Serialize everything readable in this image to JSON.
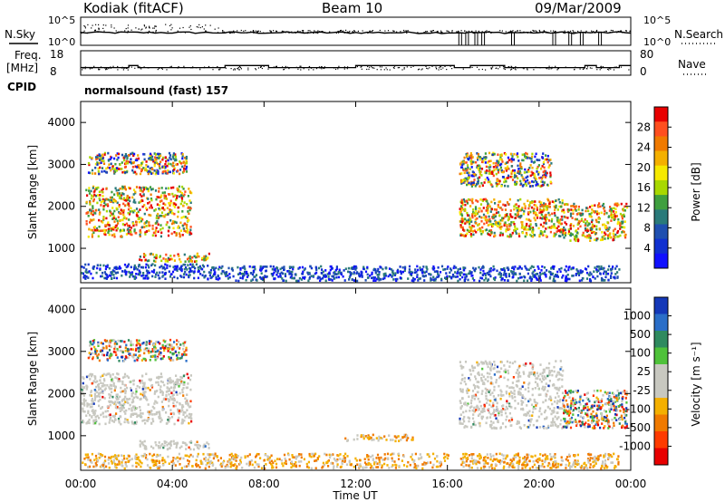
{
  "header": {
    "station": "Kodiak (fitACF)",
    "beam": "Beam 10",
    "date": "09/Mar/2009"
  },
  "side_labels": {
    "nsky": "N.Sky",
    "nsearch": "N.Search",
    "freq_line1": "Freq.",
    "freq_line2": "[MHz]",
    "nave": "Nave",
    "cpid": "CPID"
  },
  "cpid_text": "normalsound (fast) 157",
  "chart_data": [
    {
      "type": "line",
      "panel": "noise",
      "left_axis_ticks": [
        "10^5",
        "10^0"
      ],
      "right_axis_ticks": [
        "10^5",
        "10^0"
      ],
      "series": [
        {
          "name": "N.Sky",
          "style": "dots"
        },
        {
          "name": "N.Search",
          "style": "solid"
        }
      ],
      "search_noise_dropouts_hours": [
        16.5,
        16.8,
        17.2,
        17.5,
        18.8,
        20.6,
        21.3,
        21.8,
        22.6
      ]
    },
    {
      "type": "line",
      "panel": "frequency",
      "left_axis_ticks": [
        "18",
        "8"
      ],
      "right_axis_ticks": [
        "80",
        "0"
      ],
      "freq_steps_hours_mhz": [
        [
          0,
          10.8
        ],
        [
          2.1,
          11.8
        ],
        [
          2.5,
          10.8
        ],
        [
          6.3,
          11.8
        ],
        [
          8.2,
          10.8
        ],
        [
          12.0,
          11.8
        ],
        [
          16.3,
          10.8
        ],
        [
          17.0,
          11.8
        ],
        [
          18.5,
          10.8
        ],
        [
          22.0,
          11.8
        ],
        [
          22.5,
          10.8
        ],
        [
          23.5,
          11.8
        ],
        [
          24,
          11.8
        ]
      ]
    },
    {
      "type": "heatmap",
      "panel": "power",
      "xlabel": "",
      "ylabel": "Slant Range [km]",
      "yticks": [
        1000,
        2000,
        3000,
        4000
      ],
      "ylim": [
        180,
        4500
      ],
      "xlim_hours": [
        0,
        24
      ],
      "colorbar": {
        "label": "Power [dB]",
        "ticks": [
          "28",
          "24",
          "20",
          "16",
          "12",
          "8",
          "4"
        ],
        "colors": [
          "#e80000",
          "#ff4f1f",
          "#f07a00",
          "#f4b000",
          "#f6e900",
          "#a8d800",
          "#3f9f3f",
          "#2a7a7a",
          "#1f4fb0",
          "#1030d0",
          "#1010ff"
        ]
      },
      "echo_regions": [
        {
          "t0": 0.3,
          "t1": 4.6,
          "r0": 2800,
          "r1": 3300,
          "level": "mixed"
        },
        {
          "t0": 0.2,
          "t1": 4.8,
          "r0": 1300,
          "r1": 2500,
          "level": "high"
        },
        {
          "t0": 2.5,
          "t1": 5.6,
          "r0": 700,
          "r1": 900,
          "level": "high"
        },
        {
          "t0": 0.0,
          "t1": 5.5,
          "r0": 300,
          "r1": 650,
          "level": "low"
        },
        {
          "t0": 5.5,
          "t1": 16.5,
          "r0": 250,
          "r1": 600,
          "level": "low"
        },
        {
          "t0": 16.5,
          "t1": 21.0,
          "r0": 1300,
          "r1": 2200,
          "level": "high"
        },
        {
          "t0": 16.5,
          "t1": 20.5,
          "r0": 2500,
          "r1": 3300,
          "level": "mixed"
        },
        {
          "t0": 21.0,
          "t1": 23.8,
          "r0": 1200,
          "r1": 2100,
          "level": "high"
        },
        {
          "t0": 16.5,
          "t1": 23.5,
          "r0": 250,
          "r1": 600,
          "level": "low"
        }
      ]
    },
    {
      "type": "heatmap",
      "panel": "velocity",
      "xlabel": "Time UT",
      "ylabel": "Slant Range [km]",
      "yticks": [
        1000,
        2000,
        3000,
        4000
      ],
      "ylim": [
        180,
        4500
      ],
      "xticks": [
        "00:00",
        "04:00",
        "08:00",
        "12:00",
        "16:00",
        "20:00",
        "00:00"
      ],
      "xlim_hours": [
        0,
        24
      ],
      "colorbar": {
        "label": "Velocity [m s⁻¹]",
        "ticks": [
          "1000",
          "500",
          "100",
          "25",
          "-25",
          "-100",
          "-500",
          "-1000"
        ],
        "colors": [
          "#1438b8",
          "#2a6ec8",
          "#2f8a5f",
          "#4fc23a",
          "#c8c8c0",
          "#c8c8c0",
          "#f4b000",
          "#f07a00",
          "#ff3b00",
          "#e80000"
        ]
      },
      "echo_regions": [
        {
          "t0": 0.3,
          "t1": 4.6,
          "r0": 2800,
          "r1": 3300,
          "level": "mixed"
        },
        {
          "t0": 0.0,
          "t1": 4.8,
          "r0": 1300,
          "r1": 2500,
          "level": "gray"
        },
        {
          "t0": 2.5,
          "t1": 5.6,
          "r0": 700,
          "r1": 900,
          "level": "gray"
        },
        {
          "t0": 0.0,
          "t1": 16.0,
          "r0": 250,
          "r1": 600,
          "level": "orange"
        },
        {
          "t0": 11.5,
          "t1": 14.5,
          "r0": 900,
          "r1": 1050,
          "level": "orange"
        },
        {
          "t0": 16.5,
          "t1": 21.0,
          "r0": 1200,
          "r1": 2800,
          "level": "gray"
        },
        {
          "t0": 21.0,
          "t1": 23.8,
          "r0": 1200,
          "r1": 2100,
          "level": "mixed"
        },
        {
          "t0": 16.5,
          "t1": 23.5,
          "r0": 250,
          "r1": 600,
          "level": "orange"
        }
      ]
    }
  ]
}
